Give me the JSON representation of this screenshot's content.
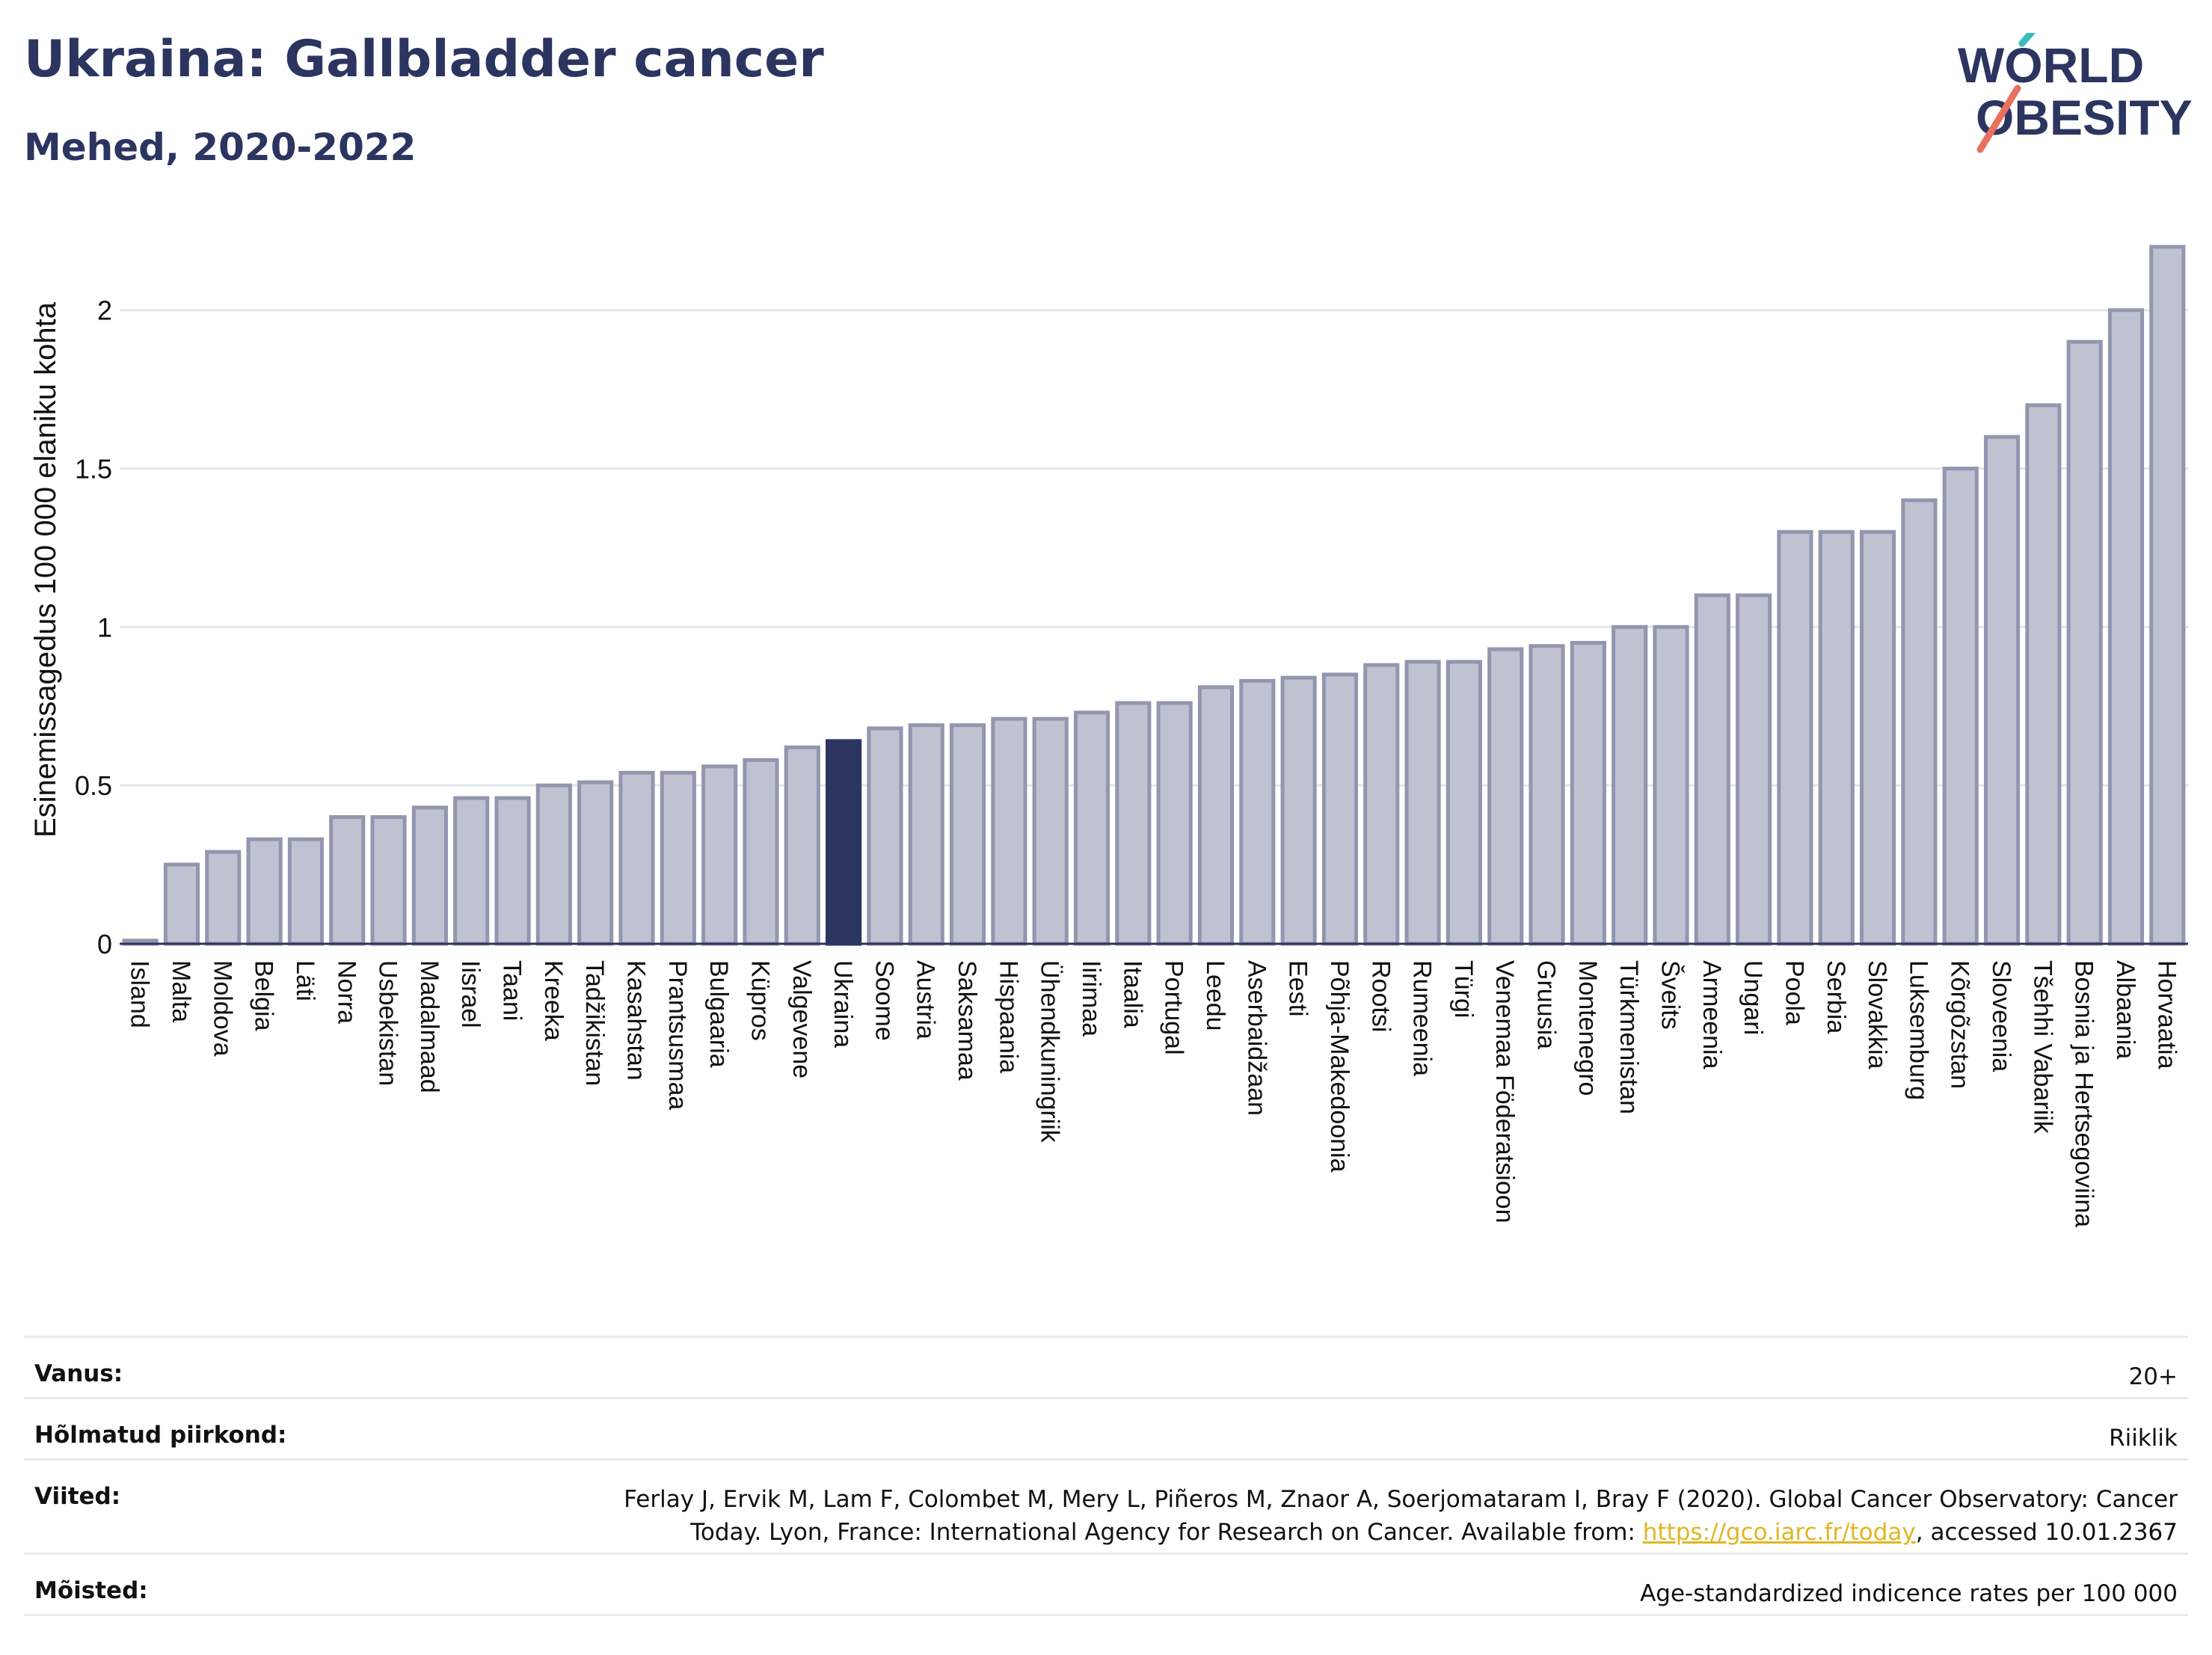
{
  "header": {
    "title": "Ukraina: Gallbladder cancer",
    "subtitle": "Mehed, 2020-2022"
  },
  "logo": {
    "line1": "WORLD",
    "line2": "OBESITY"
  },
  "colors": {
    "highlight": "#2b3560",
    "bar_fill": "#bfc2d1",
    "bar_stroke": "#9296ae",
    "grid": "#e3e6ea",
    "logo_text": "#2b3560",
    "logo_teal": "#3bbcbf",
    "logo_coral": "#e8705e"
  },
  "chart_data": {
    "type": "bar",
    "ylabel": "Esinemissagedus 100 000 elaniku kohta",
    "ylim": [
      0,
      2.2
    ],
    "yticks": [
      0,
      0.5,
      1,
      1.5,
      2
    ],
    "ytick_labels": [
      "0",
      "0.5",
      "1",
      "1.5",
      "2"
    ],
    "grid": true,
    "highlight": "Ukraina",
    "categories": [
      "Island",
      "Malta",
      "Moldova",
      "Belgia",
      "Läti",
      "Norra",
      "Usbekistan",
      "Madalmaad",
      "Iisrael",
      "Taani",
      "Kreeka",
      "Tadžikistan",
      "Kasahstan",
      "Prantsusmaa",
      "Bulgaaria",
      "Küpros",
      "Valgevene",
      "Ukraina",
      "Soome",
      "Austria",
      "Saksamaa",
      "Hispaania",
      "Ühendkuningriik",
      "Iirimaa",
      "Itaalia",
      "Portugal",
      "Leedu",
      "Aserbaidžaan",
      "Eesti",
      "Põhja-Makedoonia",
      "Rootsi",
      "Rumeenia",
      "Türgi",
      "Venemaa Föderatsioon",
      "Gruusia",
      "Montenegro",
      "Türkmenistan",
      "Šveits",
      "Armeenia",
      "Ungari",
      "Poola",
      "Serbia",
      "Slovakkia",
      "Luksemburg",
      "Kõrgõzstan",
      "Sloveenia",
      "Tšehhi Vabariik",
      "Bosnia ja Hertsegoviina",
      "Albaania",
      "Horvaatia"
    ],
    "values": [
      0.01,
      0.25,
      0.29,
      0.33,
      0.33,
      0.4,
      0.4,
      0.43,
      0.46,
      0.46,
      0.5,
      0.51,
      0.54,
      0.54,
      0.56,
      0.58,
      0.62,
      0.64,
      0.68,
      0.69,
      0.69,
      0.71,
      0.71,
      0.73,
      0.76,
      0.76,
      0.81,
      0.83,
      0.84,
      0.85,
      0.88,
      0.89,
      0.89,
      0.93,
      0.94,
      0.95,
      1.0,
      1.0,
      1.1,
      1.1,
      1.3,
      1.3,
      1.3,
      1.4,
      1.5,
      1.6,
      1.7,
      1.9,
      2.0,
      2.2
    ]
  },
  "meta": {
    "age_label": "Vanus:",
    "age_value": "20+",
    "region_label": "Hõlmatud piirkond:",
    "region_value": "Riiklik",
    "refs_label": "Viited:",
    "refs_line1": "Ferlay J, Ervik M, Lam F, Colombet M, Mery L, Piñeros M, Znaor A, Soerjomataram I, Bray F (2020). Global Cancer Observatory: Cancer",
    "refs_line2_pre": "Today. Lyon, France: International Agency for Research on Cancer. Available from: ",
    "refs_link": "https://gco.iarc.fr/today",
    "refs_line2_post": ", accessed 10.01.2367",
    "def_label": "Mõisted:",
    "def_value": "Age-standardized indicence rates per 100 000"
  }
}
